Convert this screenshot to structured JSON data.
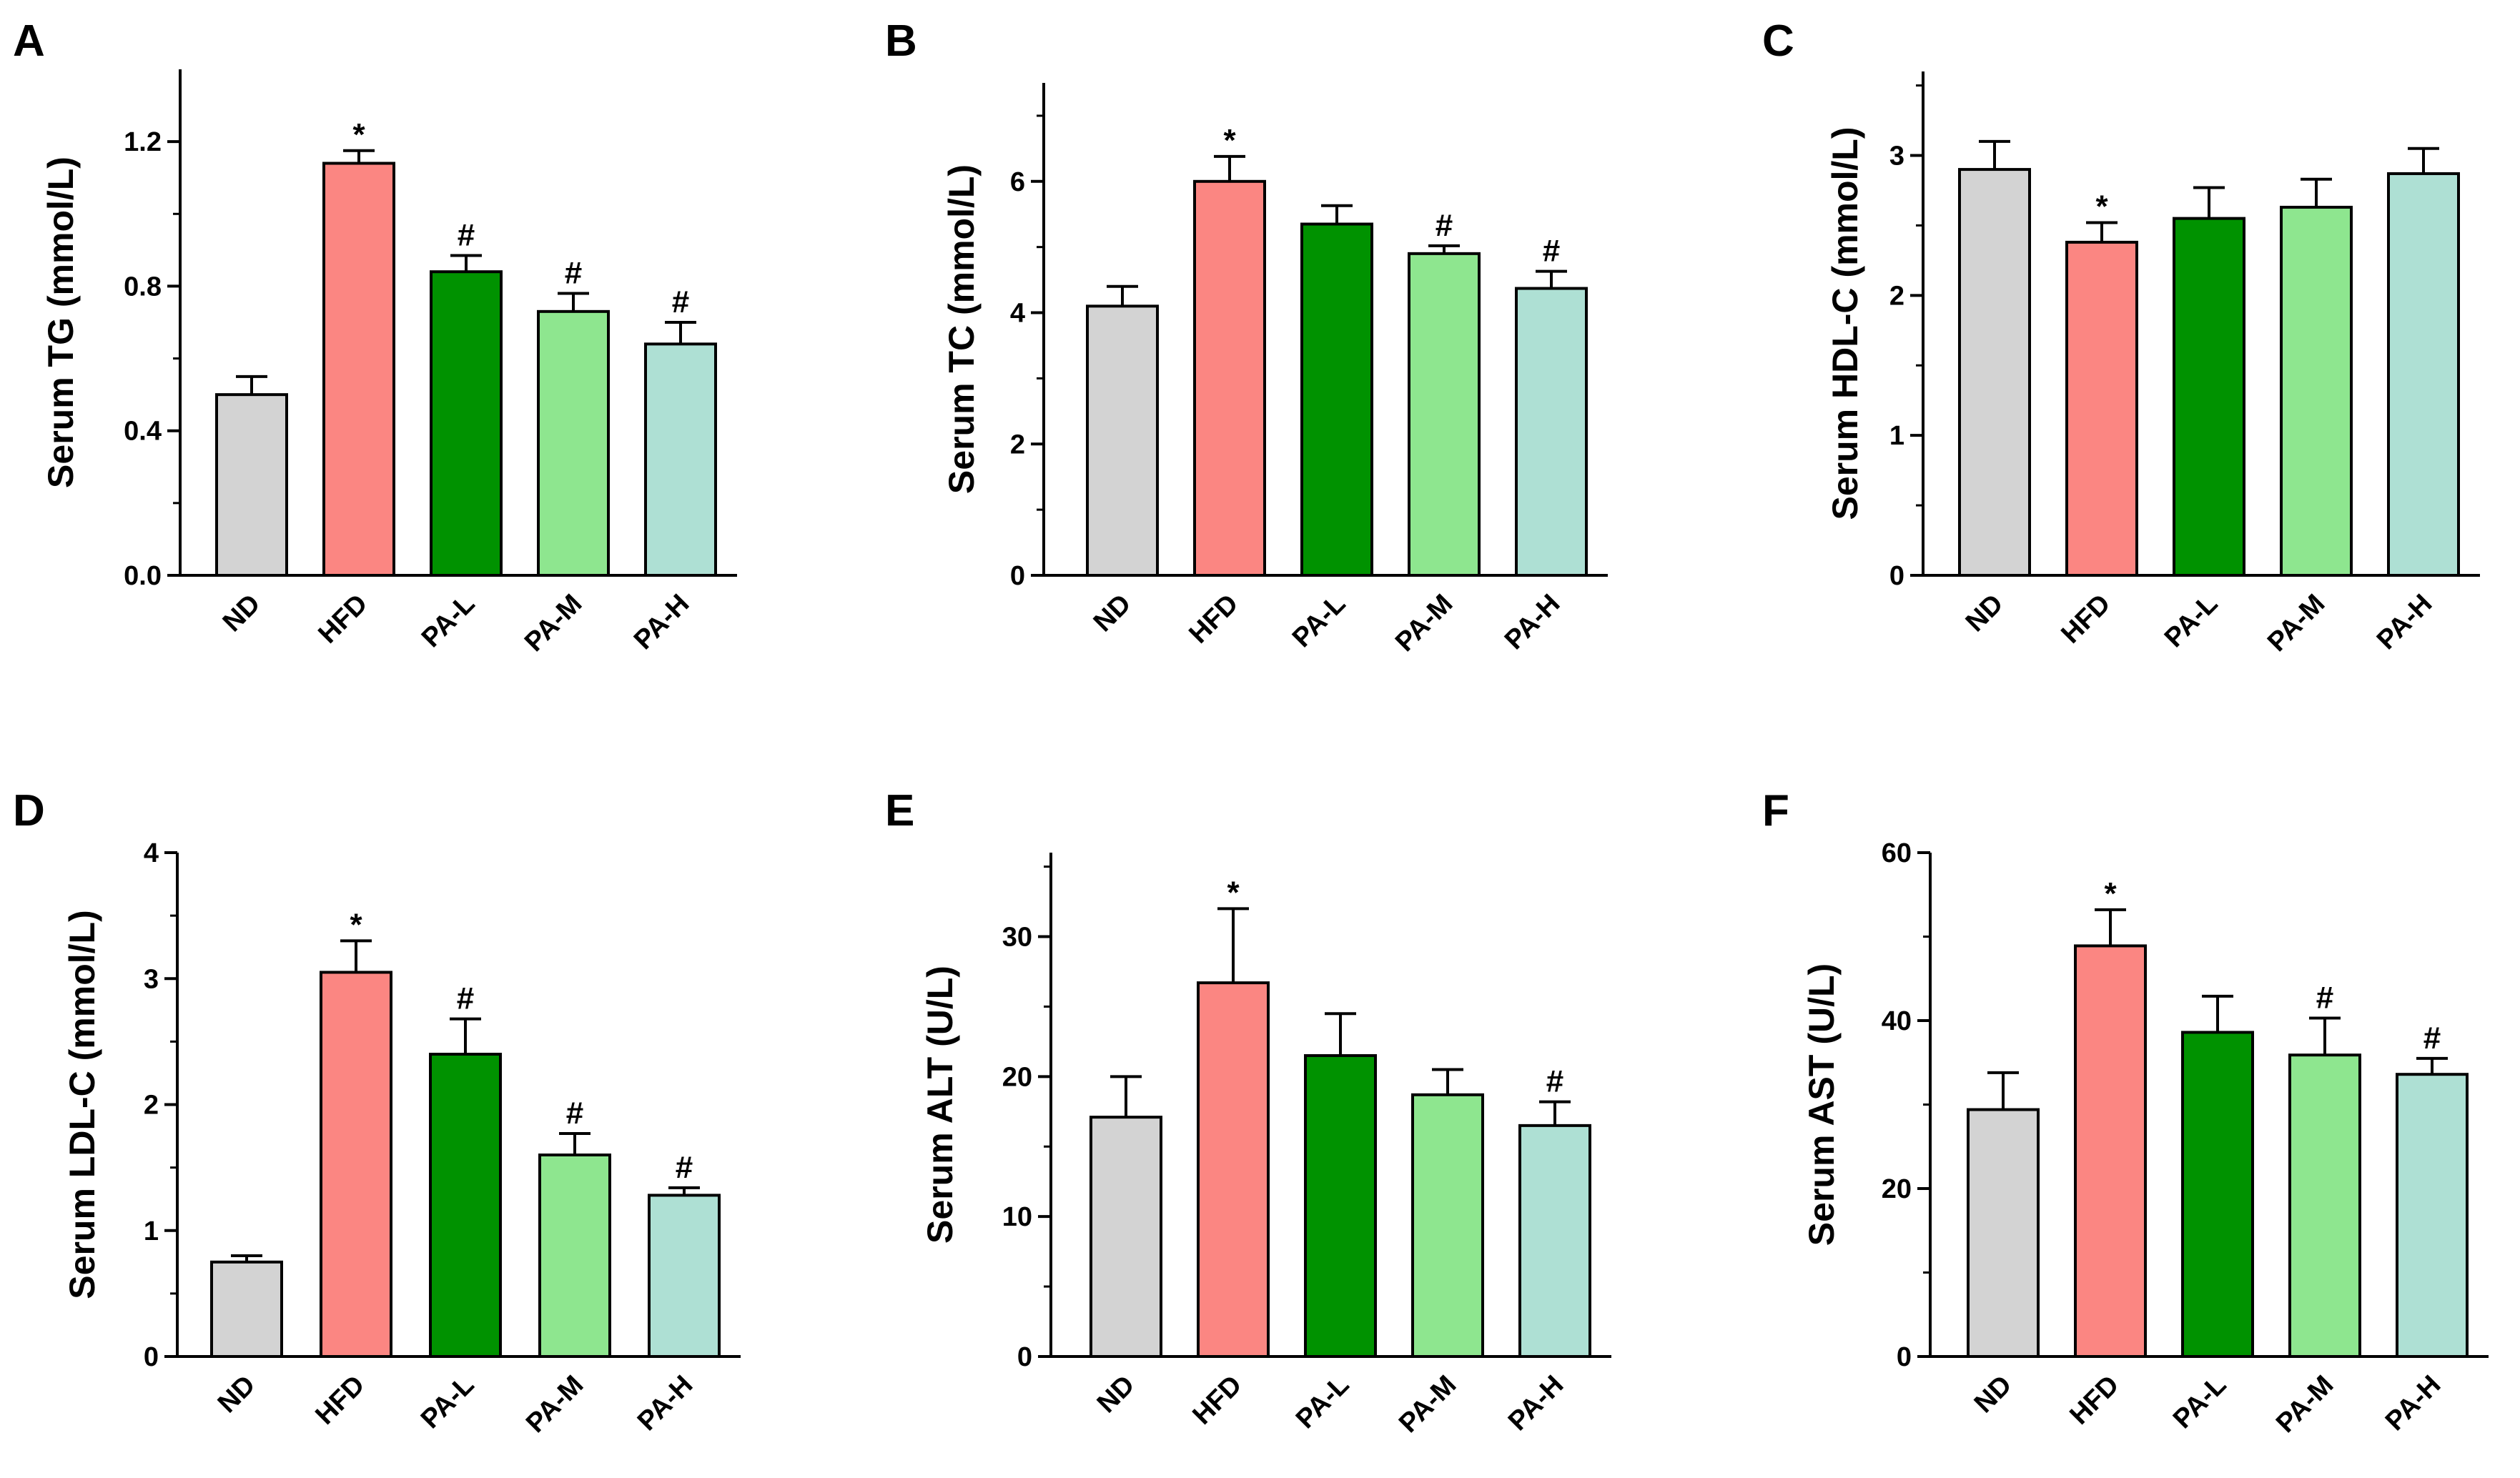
{
  "figure": {
    "description_free": true
  },
  "colors": {
    "ND": "#d3d3d3",
    "HFD": "#fb8682",
    "PA-L": "#009200",
    "PA-M": "#8ee68f",
    "PA-H": "#aee0d4"
  },
  "chart_data": [
    {
      "panel": "A",
      "type": "bar",
      "ylabel": "Serum TG (mmol/L)",
      "ylim": [
        0,
        1.4
      ],
      "yticks": [
        0.0,
        0.4,
        0.8,
        1.2
      ],
      "tick_labels": [
        "0.0",
        "0.4",
        "0.8",
        "1.2"
      ],
      "categories": [
        "ND",
        "HFD",
        "PA-L",
        "PA-M",
        "PA-H"
      ],
      "values": [
        0.5,
        1.14,
        0.84,
        0.73,
        0.64
      ],
      "errors": [
        0.05,
        0.035,
        0.045,
        0.05,
        0.06
      ],
      "significance": [
        "",
        "*",
        "#",
        "#",
        "#"
      ]
    },
    {
      "panel": "B",
      "type": "bar",
      "ylabel": "Serum TC (mmol/L)",
      "ylim": [
        0,
        7.5
      ],
      "yticks": [
        0,
        2,
        4,
        6
      ],
      "tick_labels": [
        "0",
        "2",
        "4",
        "6"
      ],
      "categories": [
        "ND",
        "HFD",
        "PA-L",
        "PA-M",
        "PA-H"
      ],
      "values": [
        4.1,
        6.0,
        5.35,
        4.9,
        4.37
      ],
      "errors": [
        0.3,
        0.38,
        0.28,
        0.12,
        0.26
      ],
      "significance": [
        "",
        "*",
        "",
        "#",
        "#"
      ]
    },
    {
      "panel": "C",
      "type": "bar",
      "ylabel": "Serum HDL-C (mmol/L)",
      "ylim": [
        0,
        3.6
      ],
      "yticks": [
        0,
        1,
        2,
        3
      ],
      "tick_labels": [
        "0",
        "1",
        "2",
        "3"
      ],
      "categories": [
        "ND",
        "HFD",
        "PA-L",
        "PA-M",
        "PA-H"
      ],
      "values": [
        2.9,
        2.38,
        2.55,
        2.63,
        2.87
      ],
      "errors": [
        0.2,
        0.14,
        0.22,
        0.2,
        0.18
      ],
      "significance": [
        "",
        "*",
        "",
        "",
        ""
      ]
    },
    {
      "panel": "D",
      "type": "bar",
      "ylabel": "Serum LDL-C (mmol/L)",
      "ylim": [
        0,
        4
      ],
      "yticks": [
        0,
        1,
        2,
        3,
        4
      ],
      "tick_labels": [
        "0",
        "1",
        "2",
        "3",
        "4"
      ],
      "categories": [
        "ND",
        "HFD",
        "PA-L",
        "PA-M",
        "PA-H"
      ],
      "values": [
        0.75,
        3.05,
        2.4,
        1.6,
        1.28
      ],
      "errors": [
        0.05,
        0.25,
        0.28,
        0.17,
        0.06
      ],
      "significance": [
        "",
        "*",
        "#",
        "#",
        "#"
      ]
    },
    {
      "panel": "E",
      "type": "bar",
      "ylabel": "Serum ALT (U/L)",
      "ylim": [
        0,
        36
      ],
      "yticks": [
        0,
        10,
        20,
        30
      ],
      "tick_labels": [
        "0",
        "10",
        "20",
        "30"
      ],
      "categories": [
        "ND",
        "HFD",
        "PA-L",
        "PA-M",
        "PA-H"
      ],
      "values": [
        17.1,
        26.7,
        21.5,
        18.7,
        16.5
      ],
      "errors": [
        2.9,
        5.3,
        3.0,
        1.8,
        1.7
      ],
      "significance": [
        "",
        "*",
        "",
        "",
        "#"
      ]
    },
    {
      "panel": "F",
      "type": "bar",
      "ylabel": "Serum AST (U/L)",
      "ylim": [
        0,
        60
      ],
      "yticks": [
        0,
        20,
        40,
        60
      ],
      "tick_labels": [
        "0",
        "20",
        "40",
        "60"
      ],
      "categories": [
        "ND",
        "HFD",
        "PA-L",
        "PA-M",
        "PA-H"
      ],
      "values": [
        29.4,
        48.9,
        38.6,
        35.9,
        33.6
      ],
      "errors": [
        4.4,
        4.3,
        4.3,
        4.4,
        1.9
      ],
      "significance": [
        "",
        "*",
        "",
        "#",
        "#"
      ]
    }
  ]
}
